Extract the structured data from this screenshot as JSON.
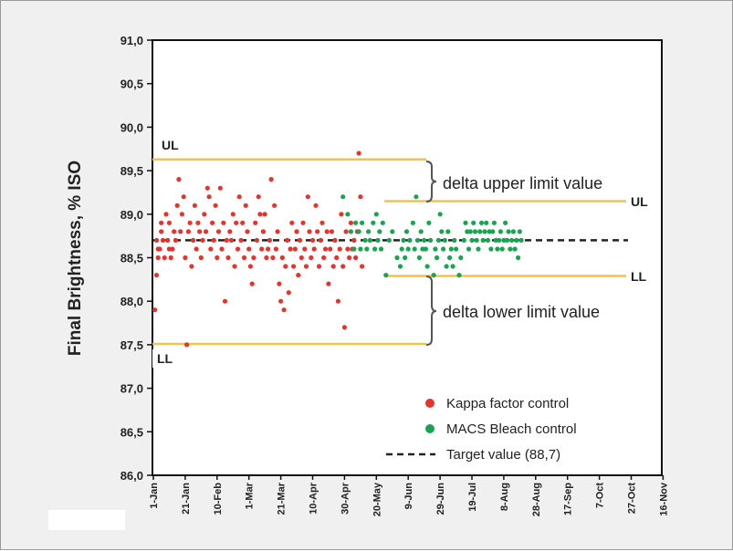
{
  "chart_data": {
    "type": "scatter",
    "title": "",
    "ylabel": "Final Brightness, % ISO",
    "xlabel": "",
    "ylim": [
      86.0,
      91.0
    ],
    "yticks": [
      "86,0",
      "86,5",
      "87,0",
      "87,5",
      "88,0",
      "88,5",
      "89,0",
      "89,5",
      "90,0",
      "90,5",
      "91,0"
    ],
    "xticks": [
      "1-Jan",
      "21-Jan",
      "10-Feb",
      "1-Mar",
      "21-Mar",
      "10-Apr",
      "30-Apr",
      "20-May",
      "9-Jun",
      "29-Jun",
      "19-Jul",
      "8-Aug",
      "28-Aug",
      "17-Sep",
      "7-Oct",
      "27-Oct",
      "16-Nov"
    ],
    "grid": false,
    "legend_position": "bottom-right",
    "series": [
      {
        "name": "Kappa factor control",
        "color": "#e8322c",
        "points": [
          [
            1,
            87.9
          ],
          [
            2,
            88.3
          ],
          [
            2,
            88.7
          ],
          [
            3,
            88.6
          ],
          [
            3,
            88.5
          ],
          [
            4,
            88.6
          ],
          [
            5,
            88.9
          ],
          [
            5,
            88.8
          ],
          [
            6,
            88.7
          ],
          [
            7,
            88.5
          ],
          [
            8,
            89.0
          ],
          [
            9,
            88.7
          ],
          [
            10,
            88.6
          ],
          [
            10,
            88.9
          ],
          [
            11,
            88.5
          ],
          [
            12,
            88.6
          ],
          [
            13,
            88.8
          ],
          [
            14,
            88.7
          ],
          [
            15,
            89.1
          ],
          [
            16,
            89.4
          ],
          [
            17,
            88.8
          ],
          [
            18,
            89.0
          ],
          [
            19,
            89.2
          ],
          [
            20,
            88.5
          ],
          [
            21,
            87.5
          ],
          [
            22,
            88.8
          ],
          [
            23,
            88.9
          ],
          [
            24,
            88.4
          ],
          [
            25,
            88.7
          ],
          [
            26,
            89.1
          ],
          [
            27,
            88.6
          ],
          [
            28,
            88.9
          ],
          [
            29,
            88.8
          ],
          [
            30,
            88.5
          ],
          [
            31,
            88.7
          ],
          [
            32,
            89.0
          ],
          [
            33,
            88.8
          ],
          [
            34,
            89.3
          ],
          [
            35,
            89.2
          ],
          [
            36,
            88.6
          ],
          [
            37,
            88.9
          ],
          [
            38,
            88.7
          ],
          [
            39,
            89.1
          ],
          [
            40,
            88.5
          ],
          [
            41,
            88.8
          ],
          [
            42,
            89.3
          ],
          [
            43,
            88.6
          ],
          [
            44,
            88.9
          ],
          [
            45,
            88.0
          ],
          [
            46,
            88.7
          ],
          [
            47,
            88.5
          ],
          [
            48,
            88.8
          ],
          [
            49,
            88.7
          ],
          [
            50,
            89.0
          ],
          [
            51,
            88.4
          ],
          [
            52,
            88.9
          ],
          [
            53,
            88.6
          ],
          [
            54,
            89.2
          ],
          [
            55,
            88.7
          ],
          [
            56,
            88.9
          ],
          [
            57,
            88.5
          ],
          [
            58,
            89.1
          ],
          [
            59,
            88.8
          ],
          [
            60,
            88.6
          ],
          [
            61,
            88.4
          ],
          [
            62,
            88.2
          ],
          [
            63,
            88.5
          ],
          [
            64,
            88.9
          ],
          [
            65,
            88.7
          ],
          [
            66,
            89.2
          ],
          [
            67,
            89.0
          ],
          [
            68,
            88.6
          ],
          [
            69,
            88.8
          ],
          [
            70,
            89.0
          ],
          [
            71,
            88.5
          ],
          [
            72,
            88.6
          ],
          [
            73,
            88.7
          ],
          [
            74,
            89.4
          ],
          [
            75,
            88.5
          ],
          [
            76,
            89.1
          ],
          [
            77,
            88.6
          ],
          [
            78,
            88.8
          ],
          [
            79,
            88.2
          ],
          [
            80,
            88.0
          ],
          [
            81,
            88.5
          ],
          [
            82,
            87.9
          ],
          [
            83,
            88.4
          ],
          [
            84,
            88.7
          ],
          [
            85,
            88.1
          ],
          [
            86,
            88.6
          ],
          [
            87,
            88.9
          ],
          [
            88,
            88.4
          ],
          [
            89,
            88.6
          ],
          [
            90,
            88.8
          ],
          [
            91,
            88.3
          ],
          [
            92,
            88.7
          ],
          [
            93,
            88.5
          ],
          [
            94,
            88.9
          ],
          [
            95,
            88.6
          ],
          [
            96,
            88.4
          ],
          [
            97,
            89.2
          ],
          [
            98,
            88.8
          ],
          [
            99,
            88.5
          ],
          [
            100,
            88.7
          ],
          [
            101,
            88.6
          ],
          [
            102,
            89.1
          ],
          [
            103,
            88.8
          ],
          [
            104,
            88.4
          ],
          [
            105,
            88.7
          ],
          [
            106,
            88.9
          ],
          [
            107,
            88.5
          ],
          [
            108,
            88.6
          ],
          [
            109,
            88.8
          ],
          [
            110,
            88.2
          ],
          [
            111,
            88.6
          ],
          [
            112,
            88.8
          ],
          [
            113,
            88.4
          ],
          [
            114,
            88.7
          ],
          [
            115,
            88.5
          ],
          [
            116,
            88.0
          ],
          [
            117,
            88.6
          ],
          [
            118,
            89.0
          ],
          [
            119,
            88.4
          ],
          [
            120,
            87.7
          ],
          [
            121,
            88.8
          ],
          [
            122,
            88.6
          ],
          [
            123,
            88.5
          ],
          [
            124,
            88.9
          ],
          [
            125,
            88.6
          ],
          [
            126,
            88.7
          ],
          [
            127,
            88.5
          ],
          [
            128,
            88.8
          ],
          [
            129,
            89.7
          ],
          [
            130,
            89.2
          ],
          [
            131,
            88.4
          ]
        ]
      },
      {
        "name": "MACS Bleach control",
        "color": "#18a550",
        "points": [
          [
            119,
            89.2
          ],
          [
            122,
            89.0
          ],
          [
            124,
            88.8
          ],
          [
            126,
            88.6
          ],
          [
            127,
            88.9
          ],
          [
            129,
            88.8
          ],
          [
            130,
            88.6
          ],
          [
            131,
            88.9
          ],
          [
            133,
            88.7
          ],
          [
            134,
            88.6
          ],
          [
            135,
            88.8
          ],
          [
            136,
            88.7
          ],
          [
            138,
            88.9
          ],
          [
            139,
            88.6
          ],
          [
            140,
            89.0
          ],
          [
            141,
            88.7
          ],
          [
            142,
            88.8
          ],
          [
            143,
            88.6
          ],
          [
            144,
            88.9
          ],
          [
            146,
            88.3
          ],
          [
            148,
            88.7
          ],
          [
            150,
            88.8
          ],
          [
            153,
            88.5
          ],
          [
            155,
            88.4
          ],
          [
            156,
            88.6
          ],
          [
            157,
            88.7
          ],
          [
            158,
            88.5
          ],
          [
            159,
            88.8
          ],
          [
            160,
            88.6
          ],
          [
            161,
            88.7
          ],
          [
            163,
            88.9
          ],
          [
            164,
            88.6
          ],
          [
            165,
            89.2
          ],
          [
            166,
            88.7
          ],
          [
            167,
            88.5
          ],
          [
            168,
            88.8
          ],
          [
            169,
            88.6
          ],
          [
            170,
            88.7
          ],
          [
            171,
            88.6
          ],
          [
            172,
            88.4
          ],
          [
            173,
            88.9
          ],
          [
            174,
            88.7
          ],
          [
            176,
            88.3
          ],
          [
            177,
            88.6
          ],
          [
            178,
            88.5
          ],
          [
            179,
            88.7
          ],
          [
            180,
            89.0
          ],
          [
            181,
            88.8
          ],
          [
            182,
            88.6
          ],
          [
            183,
            88.7
          ],
          [
            184,
            88.4
          ],
          [
            185,
            88.8
          ],
          [
            186,
            88.5
          ],
          [
            187,
            88.6
          ],
          [
            188,
            88.4
          ],
          [
            189,
            88.7
          ],
          [
            190,
            88.6
          ],
          [
            192,
            88.3
          ],
          [
            193,
            88.5
          ],
          [
            195,
            88.7
          ],
          [
            196,
            88.9
          ],
          [
            197,
            88.8
          ],
          [
            198,
            88.6
          ],
          [
            199,
            88.8
          ],
          [
            200,
            88.7
          ],
          [
            201,
            88.9
          ],
          [
            202,
            88.8
          ],
          [
            203,
            88.7
          ],
          [
            204,
            88.6
          ],
          [
            205,
            88.8
          ],
          [
            206,
            88.9
          ],
          [
            207,
            88.7
          ],
          [
            208,
            88.8
          ],
          [
            209,
            88.9
          ],
          [
            210,
            88.7
          ],
          [
            211,
            88.8
          ],
          [
            212,
            88.6
          ],
          [
            213,
            88.8
          ],
          [
            214,
            88.9
          ],
          [
            215,
            88.7
          ],
          [
            216,
            88.6
          ],
          [
            217,
            88.7
          ],
          [
            218,
            88.8
          ],
          [
            219,
            88.6
          ],
          [
            220,
            88.7
          ],
          [
            221,
            88.9
          ],
          [
            222,
            88.7
          ],
          [
            223,
            88.8
          ],
          [
            224,
            88.6
          ],
          [
            225,
            88.7
          ],
          [
            226,
            88.8
          ],
          [
            227,
            88.6
          ],
          [
            228,
            88.7
          ],
          [
            229,
            88.5
          ],
          [
            230,
            88.8
          ],
          [
            231,
            88.7
          ]
        ]
      },
      {
        "name": "Target value  (88,7)",
        "color": "#222222",
        "style": "dashed",
        "value": 88.7
      }
    ],
    "limit_lines": {
      "color": "#f5c242",
      "initial": {
        "UL": 89.63,
        "LL": 87.51
      },
      "later": {
        "UL": 89.15,
        "LL": 88.29
      }
    },
    "annotations": {
      "ul_left": "UL",
      "ll_left": "LL",
      "ul_right": "UL",
      "ll_right": "LL",
      "delta_upper": "delta upper limit value",
      "delta_lower": "delta lower limit value"
    }
  }
}
